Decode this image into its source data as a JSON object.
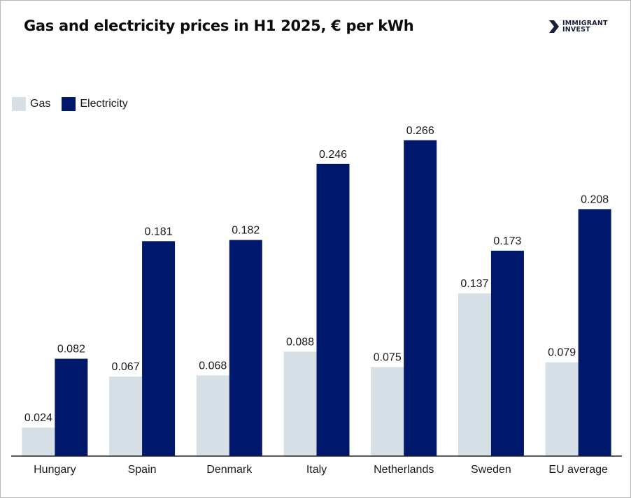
{
  "chart_data": {
    "type": "bar",
    "title": "Gas and electricity prices in H1 2025, € per kWh",
    "xlabel": "",
    "ylabel": "",
    "ylim": [
      0,
      0.3
    ],
    "grid": false,
    "legend_position": "top-left",
    "categories": [
      "Hungary",
      "Spain",
      "Denmark",
      "Italy",
      "Netherlands",
      "Sweden",
      "EU average"
    ],
    "series": [
      {
        "name": "Gas",
        "color": "#d5dfe5",
        "values": [
          0.024,
          0.067,
          0.068,
          0.088,
          0.075,
          0.137,
          0.079
        ]
      },
      {
        "name": "Electricity",
        "color": "#00186b",
        "values": [
          0.082,
          0.181,
          0.182,
          0.246,
          0.266,
          0.173,
          0.208
        ]
      }
    ]
  },
  "brand": {
    "line1": "IMMIGRANT",
    "line2": "INVEST",
    "icon": "brand-arrow-icon"
  }
}
